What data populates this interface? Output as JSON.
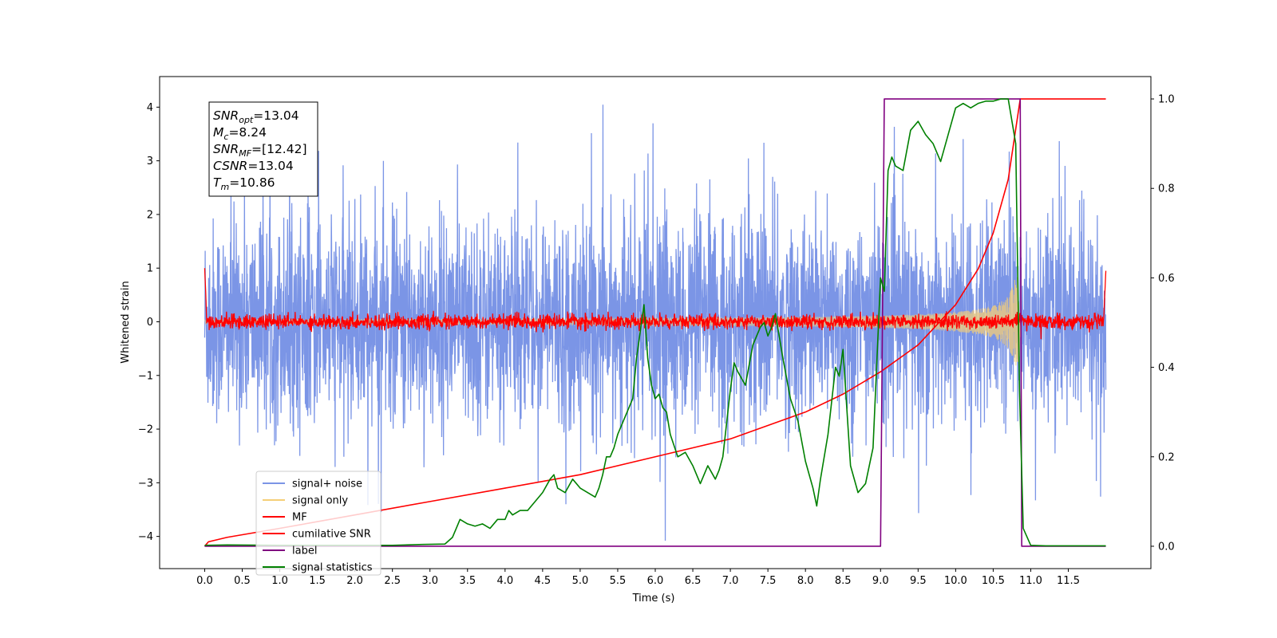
{
  "chart_data": {
    "type": "line",
    "title": "",
    "xlabel": "Time (s)",
    "ylabel": "Whitened strain",
    "ylabel_right": "",
    "xlim": [
      -0.6,
      12.6
    ],
    "ylim": [
      -4.6,
      4.57
    ],
    "ylim_right": [
      -0.05,
      1.05
    ],
    "x_ticks": [
      0.0,
      0.5,
      1.0,
      1.5,
      2.0,
      2.5,
      3.0,
      3.5,
      4.0,
      4.5,
      5.0,
      5.5,
      6.0,
      6.5,
      7.0,
      7.5,
      8.0,
      8.5,
      9.0,
      9.5,
      10.0,
      10.5,
      11.0,
      11.5
    ],
    "x_tick_labels": [
      "0.0",
      "0.5",
      "1.0",
      "1.5",
      "2.0",
      "2.5",
      "3.0",
      "3.5",
      "4.0",
      "4.5",
      "5.0",
      "5.5",
      "6.0",
      "6.5",
      "7.0",
      "7.5",
      "8.0",
      "8.5",
      "9.0",
      "9.5",
      "10.0",
      "10.5",
      "11.0",
      "11.5"
    ],
    "y_ticks": [
      -4,
      -3,
      -2,
      -1,
      0,
      1,
      2,
      3,
      4
    ],
    "y_tick_labels": [
      "−4",
      "−3",
      "−2",
      "−1",
      "0",
      "1",
      "2",
      "3",
      "4"
    ],
    "y_right_ticks": [
      0.0,
      0.2,
      0.4,
      0.6,
      0.8,
      1.0
    ],
    "y_right_tick_labels": [
      "0.0",
      "0.2",
      "0.4",
      "0.6",
      "0.8",
      "1.0"
    ],
    "grid": false,
    "legend_position": "lower-left",
    "stats_box": [
      {
        "main": "SNR",
        "sub": "opt",
        "value": "=13.04"
      },
      {
        "main": "M",
        "sub": "c",
        "value": "=8.24"
      },
      {
        "main": "SNR",
        "sub": "MF",
        "value": "=[12.42]"
      },
      {
        "main": "CSNR",
        "sub": "",
        "value": "=13.04"
      },
      {
        "main": "T",
        "sub": "m",
        "value": "=10.86"
      }
    ],
    "series": [
      {
        "name": "signal+ noise",
        "axis": "left",
        "color": "#7b95e6",
        "kind": "noise",
        "time_range": [
          0,
          12
        ],
        "amplitude_typical": 1.0,
        "amplitude_peak": 4.2
      },
      {
        "name": "signal only",
        "axis": "left",
        "color": "#f5cf77",
        "kind": "chirp",
        "time_range": [
          0,
          10.86
        ],
        "envelope_end": 0.85
      },
      {
        "name": "MF",
        "axis": "left",
        "color": "#ff0000",
        "kind": "mf",
        "time_range": [
          0,
          12
        ],
        "start_value": 1.0,
        "end_value": 0.95,
        "noise_amplitude": 0.15
      },
      {
        "name": "cumilative SNR",
        "axis": "right",
        "color": "#ff0000",
        "x": [
          0.0,
          0.05,
          0.3,
          1.0,
          2.0,
          3.0,
          4.0,
          5.0,
          6.0,
          7.0,
          8.0,
          8.5,
          9.0,
          9.5,
          10.0,
          10.3,
          10.5,
          10.7,
          10.86,
          12.0
        ],
        "y": [
          0.0,
          0.01,
          0.02,
          0.04,
          0.07,
          0.1,
          0.13,
          0.16,
          0.2,
          0.24,
          0.3,
          0.34,
          0.39,
          0.45,
          0.54,
          0.62,
          0.7,
          0.82,
          1.0,
          1.0
        ]
      },
      {
        "name": "label",
        "axis": "right",
        "color": "#800080",
        "x": [
          0.0,
          9.0,
          9.05,
          10.86,
          10.88,
          12.0
        ],
        "y": [
          0.0,
          0.0,
          1.0,
          1.0,
          0.0,
          0.0
        ]
      },
      {
        "name": "signal statistics",
        "axis": "right",
        "color": "#008000",
        "x": [
          0.0,
          0.3,
          1.0,
          2.0,
          2.5,
          2.9,
          3.2,
          3.3,
          3.35,
          3.4,
          3.5,
          3.6,
          3.7,
          3.8,
          3.9,
          4.0,
          4.05,
          4.1,
          4.2,
          4.3,
          4.4,
          4.5,
          4.6,
          4.65,
          4.7,
          4.8,
          4.9,
          5.0,
          5.1,
          5.2,
          5.25,
          5.3,
          5.35,
          5.4,
          5.45,
          5.5,
          5.6,
          5.7,
          5.75,
          5.8,
          5.85,
          5.9,
          5.95,
          6.0,
          6.05,
          6.1,
          6.15,
          6.2,
          6.3,
          6.4,
          6.5,
          6.6,
          6.7,
          6.8,
          6.85,
          6.9,
          7.0,
          7.05,
          7.1,
          7.2,
          7.3,
          7.4,
          7.45,
          7.5,
          7.55,
          7.6,
          7.7,
          7.8,
          7.9,
          8.0,
          8.1,
          8.15,
          8.2,
          8.3,
          8.4,
          8.45,
          8.5,
          8.6,
          8.7,
          8.8,
          8.9,
          9.0,
          9.05,
          9.1,
          9.15,
          9.2,
          9.3,
          9.4,
          9.5,
          9.6,
          9.7,
          9.8,
          9.9,
          10.0,
          10.1,
          10.2,
          10.3,
          10.4,
          10.5,
          10.6,
          10.7,
          10.8,
          10.85,
          10.9,
          11.0,
          11.2,
          12.0
        ],
        "y": [
          0.002,
          0.003,
          0.002,
          0.002,
          0.002,
          0.004,
          0.005,
          0.02,
          0.04,
          0.06,
          0.05,
          0.045,
          0.05,
          0.04,
          0.06,
          0.06,
          0.08,
          0.07,
          0.08,
          0.08,
          0.1,
          0.12,
          0.15,
          0.16,
          0.13,
          0.12,
          0.15,
          0.13,
          0.12,
          0.11,
          0.13,
          0.16,
          0.2,
          0.2,
          0.22,
          0.25,
          0.29,
          0.33,
          0.42,
          0.48,
          0.54,
          0.42,
          0.36,
          0.33,
          0.34,
          0.31,
          0.3,
          0.25,
          0.2,
          0.21,
          0.18,
          0.14,
          0.18,
          0.15,
          0.17,
          0.2,
          0.35,
          0.41,
          0.39,
          0.36,
          0.45,
          0.49,
          0.5,
          0.47,
          0.49,
          0.52,
          0.42,
          0.33,
          0.28,
          0.19,
          0.13,
          0.09,
          0.15,
          0.25,
          0.4,
          0.38,
          0.44,
          0.18,
          0.12,
          0.14,
          0.22,
          0.6,
          0.57,
          0.84,
          0.87,
          0.85,
          0.84,
          0.93,
          0.95,
          0.92,
          0.9,
          0.86,
          0.92,
          0.98,
          0.99,
          0.98,
          0.99,
          0.995,
          0.995,
          1.0,
          1.0,
          0.9,
          0.35,
          0.04,
          0.002,
          0.001,
          0.001
        ]
      }
    ]
  }
}
